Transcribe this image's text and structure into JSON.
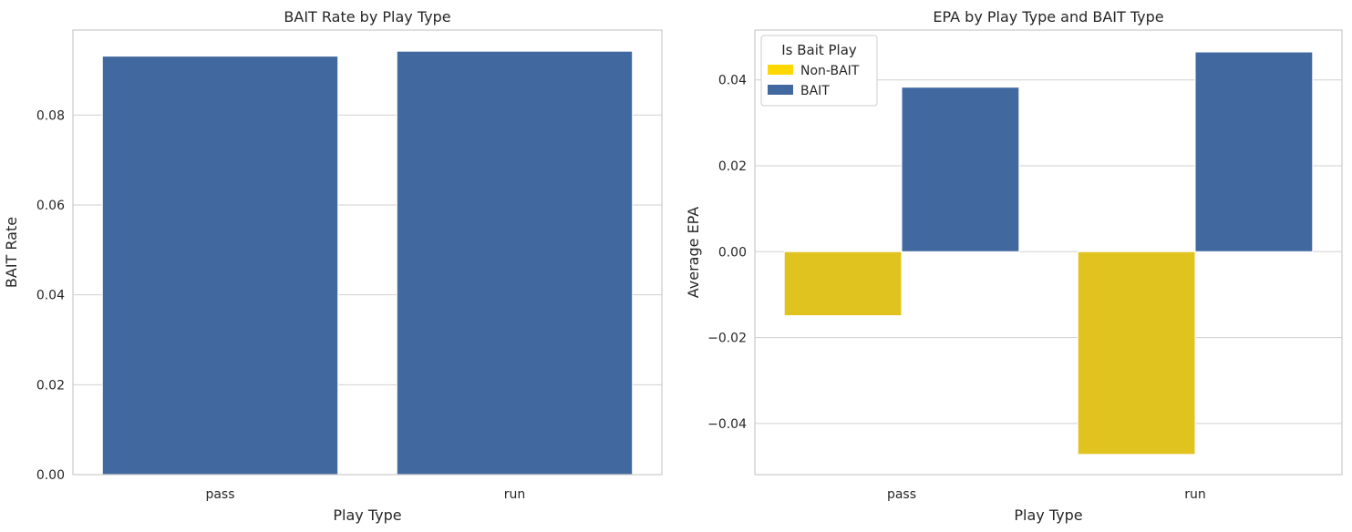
{
  "chart_data": [
    {
      "type": "bar",
      "title": "BAIT Rate by Play Type",
      "xlabel": "Play Type",
      "ylabel": "BAIT Rate",
      "categories": [
        "pass",
        "run"
      ],
      "values": [
        0.0931,
        0.0942
      ],
      "ylim": [
        0,
        0.0989
      ],
      "yticks": [
        0.0,
        0.02,
        0.04,
        0.06,
        0.08
      ],
      "ytick_labels": [
        "0.00",
        "0.02",
        "0.04",
        "0.06",
        "0.08"
      ],
      "color": "#4169a0",
      "grid": true
    },
    {
      "type": "bar",
      "title": "EPA by Play Type and BAIT Type",
      "xlabel": "Play Type",
      "ylabel": "Average EPA",
      "categories": [
        "pass",
        "run"
      ],
      "series": [
        {
          "name": "Non-BAIT",
          "values": [
            -0.0149,
            -0.0472
          ],
          "color": "#e1c320"
        },
        {
          "name": "BAIT",
          "values": [
            0.0383,
            0.0465
          ],
          "color": "#4169a0"
        }
      ],
      "ylim": [
        -0.0519,
        0.0516
      ],
      "yticks": [
        -0.04,
        -0.02,
        0.0,
        0.02,
        0.04
      ],
      "ytick_labels": [
        "−0.04",
        "−0.02",
        "0.00",
        "0.02",
        "0.04"
      ],
      "legend": {
        "title": "Is Bait Play",
        "position": "top-left",
        "swatches": [
          "#ffd700",
          "#4169a0"
        ]
      },
      "grid": true
    }
  ]
}
